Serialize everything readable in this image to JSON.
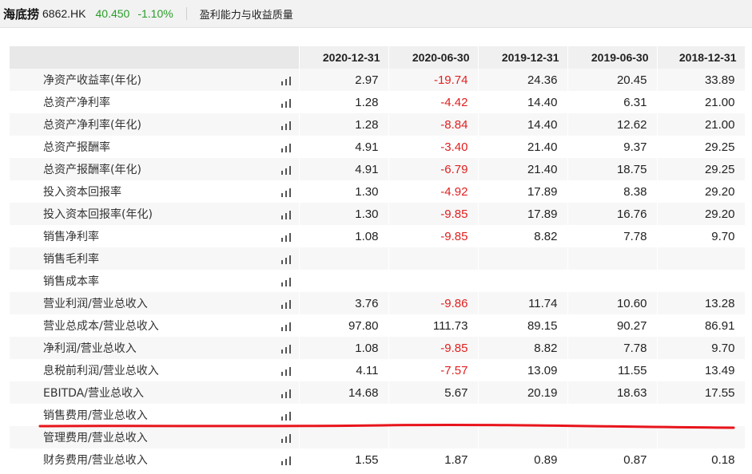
{
  "header": {
    "name": "海底捞",
    "code": "6862.HK",
    "price": "40.450",
    "change": "-1.10%",
    "section": "盈利能力与收益质量"
  },
  "table": {
    "columns": [
      "2020-12-31",
      "2020-06-30",
      "2019-12-31",
      "2019-06-30",
      "2018-12-31"
    ],
    "rows": [
      {
        "label": "净资产收益率(年化)",
        "values": [
          "2.97",
          "-19.74",
          "24.36",
          "20.45",
          "33.89"
        ]
      },
      {
        "label": "总资产净利率",
        "values": [
          "1.28",
          "-4.42",
          "14.40",
          "6.31",
          "21.00"
        ]
      },
      {
        "label": "总资产净利率(年化)",
        "values": [
          "1.28",
          "-8.84",
          "14.40",
          "12.62",
          "21.00"
        ]
      },
      {
        "label": "总资产报酬率",
        "values": [
          "4.91",
          "-3.40",
          "21.40",
          "9.37",
          "29.25"
        ]
      },
      {
        "label": "总资产报酬率(年化)",
        "values": [
          "4.91",
          "-6.79",
          "21.40",
          "18.75",
          "29.25"
        ]
      },
      {
        "label": "投入资本回报率",
        "values": [
          "1.30",
          "-4.92",
          "17.89",
          "8.38",
          "29.20"
        ]
      },
      {
        "label": "投入资本回报率(年化)",
        "values": [
          "1.30",
          "-9.85",
          "17.89",
          "16.76",
          "29.20"
        ]
      },
      {
        "label": "销售净利率",
        "values": [
          "1.08",
          "-9.85",
          "8.82",
          "7.78",
          "9.70"
        ]
      },
      {
        "label": "销售毛利率",
        "values": [
          "",
          "",
          "",
          "",
          ""
        ]
      },
      {
        "label": "销售成本率",
        "values": [
          "",
          "",
          "",
          "",
          ""
        ]
      },
      {
        "label": "营业利润/营业总收入",
        "values": [
          "3.76",
          "-9.86",
          "11.74",
          "10.60",
          "13.28"
        ]
      },
      {
        "label": "营业总成本/营业总收入",
        "values": [
          "97.80",
          "111.73",
          "89.15",
          "90.27",
          "86.91"
        ]
      },
      {
        "label": "净利润/营业总收入",
        "values": [
          "1.08",
          "-9.85",
          "8.82",
          "7.78",
          "9.70"
        ]
      },
      {
        "label": "息税前利润/营业总收入",
        "values": [
          "4.11",
          "-7.57",
          "13.09",
          "11.55",
          "13.49"
        ]
      },
      {
        "label": "EBITDA/营业总收入",
        "values": [
          "14.68",
          "5.67",
          "20.19",
          "18.63",
          "17.55"
        ]
      },
      {
        "label": "销售费用/营业总收入",
        "values": [
          "",
          "",
          "",
          "",
          ""
        ]
      },
      {
        "label": "管理费用/营业总收入",
        "values": [
          "",
          "",
          "",
          "",
          ""
        ]
      },
      {
        "label": "财务费用/营业总收入",
        "values": [
          "1.55",
          "1.87",
          "0.89",
          "0.87",
          "0.18"
        ]
      }
    ]
  },
  "colors": {
    "positive_quote": "#2a9d2a",
    "negative_value": "#e02020",
    "annotation_line": "#e8141b"
  },
  "icons": {
    "row_chart": "bar-chart-icon"
  }
}
